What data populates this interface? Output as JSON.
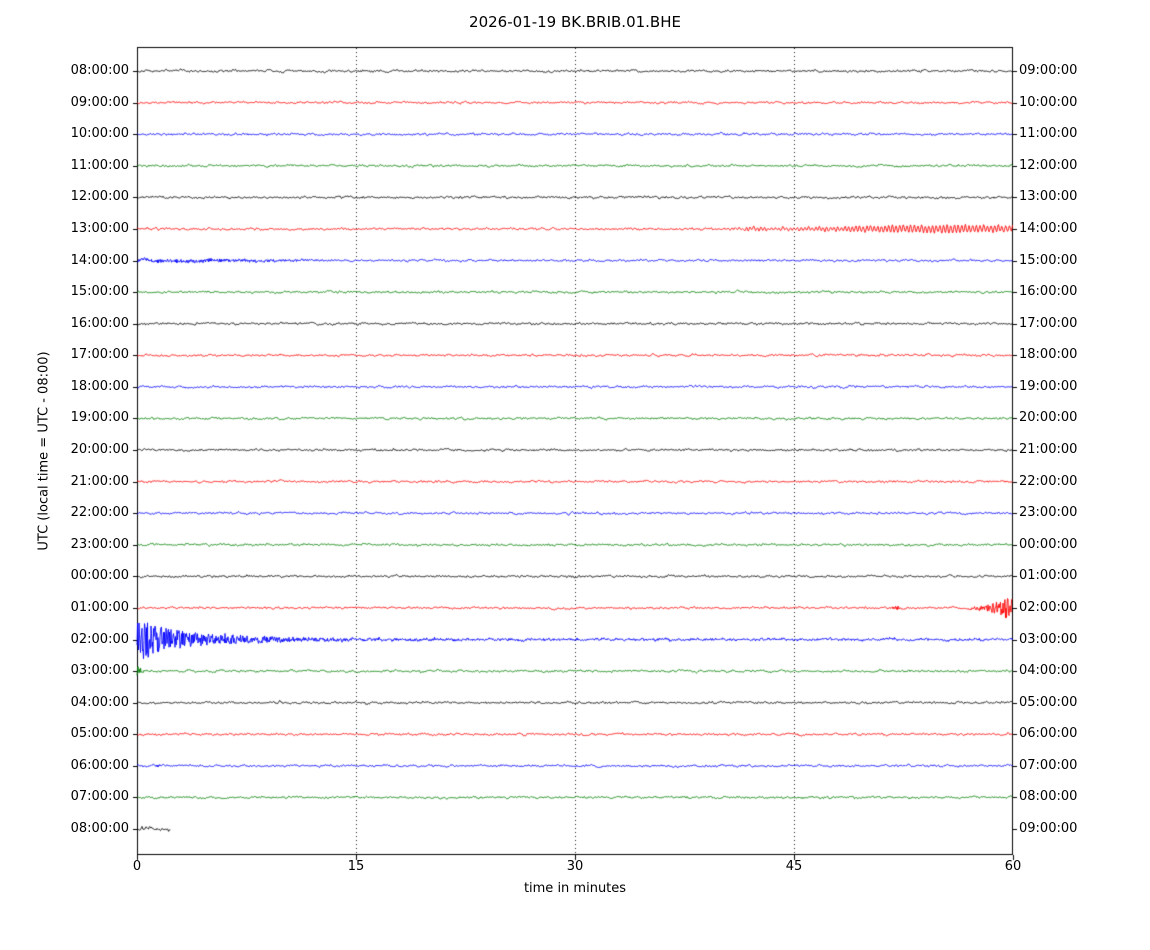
{
  "chart_data": {
    "type": "line",
    "kind": "helicorder-dayplot",
    "title": "2026-01-19 BK.BRIB.01.BHE",
    "xlabel": "time in minutes",
    "ylabel": "UTC (local time = UTC - 08:00)",
    "x_range": [
      0,
      60
    ],
    "x_ticks": [
      0,
      15,
      30,
      45,
      60
    ],
    "grid_minutes": [
      15,
      30,
      45
    ],
    "minutes_per_row": 60,
    "colors": {
      "black": "#000000",
      "red": "#ff0000",
      "blue": "#0000ff",
      "green": "#008000"
    },
    "rows": [
      {
        "left": "08:00:00",
        "right": "09:00:00",
        "color": "black",
        "seed": 3
      },
      {
        "left": "09:00:00",
        "right": "10:00:00",
        "color": "red",
        "seed": 7
      },
      {
        "left": "10:00:00",
        "right": "11:00:00",
        "color": "blue",
        "seed": 11
      },
      {
        "left": "11:00:00",
        "right": "12:00:00",
        "color": "green",
        "seed": 19
      },
      {
        "left": "12:00:00",
        "right": "13:00:00",
        "color": "black",
        "seed": 23
      },
      {
        "left": "13:00:00",
        "right": "14:00:00",
        "color": "red",
        "seed": 31,
        "events": [
          {
            "type": "osc",
            "freq": 4,
            "env": [
              [
                40,
                0.2
              ],
              [
                42,
                1.0
              ],
              [
                43.5,
                0.5
              ],
              [
                46,
                0.8
              ],
              [
                48,
                1.2
              ],
              [
                50,
                1.5
              ],
              [
                52,
                1.8
              ],
              [
                54,
                2.0
              ],
              [
                56,
                2.2
              ],
              [
                58,
                1.7
              ],
              [
                60,
                1.5
              ]
            ]
          }
        ]
      },
      {
        "left": "14:00:00",
        "right": "15:00:00",
        "color": "blue",
        "seed": 37,
        "events": [
          {
            "type": "noise",
            "env": [
              [
                0,
                1.1
              ],
              [
                4,
                0.9
              ],
              [
                8,
                0.7
              ],
              [
                12,
                0.35
              ],
              [
                14,
                0
              ]
            ]
          }
        ]
      },
      {
        "left": "15:00:00",
        "right": "16:00:00",
        "color": "green",
        "seed": 41
      },
      {
        "left": "16:00:00",
        "right": "17:00:00",
        "color": "black",
        "seed": 43
      },
      {
        "left": "17:00:00",
        "right": "18:00:00",
        "color": "red",
        "seed": 47
      },
      {
        "left": "18:00:00",
        "right": "19:00:00",
        "color": "blue",
        "seed": 53
      },
      {
        "left": "19:00:00",
        "right": "20:00:00",
        "color": "green",
        "seed": 59
      },
      {
        "left": "20:00:00",
        "right": "21:00:00",
        "color": "black",
        "seed": 61
      },
      {
        "left": "21:00:00",
        "right": "22:00:00",
        "color": "red",
        "seed": 67
      },
      {
        "left": "22:00:00",
        "right": "23:00:00",
        "color": "blue",
        "seed": 71
      },
      {
        "left": "23:00:00",
        "right": "00:00:00",
        "color": "green",
        "seed": 73
      },
      {
        "left": "00:00:00",
        "right": "01:00:00",
        "color": "black",
        "seed": 79
      },
      {
        "left": "01:00:00",
        "right": "02:00:00",
        "color": "red",
        "seed": 83,
        "events": [
          {
            "type": "noise",
            "env": [
              [
                51.5,
                0
              ],
              [
                52,
                1.2
              ],
              [
                52.4,
                0
              ]
            ]
          },
          {
            "type": "noise",
            "env": [
              [
                57,
                0.3
              ],
              [
                58,
                1.5
              ],
              [
                59,
                4
              ],
              [
                59.5,
                5.5
              ],
              [
                60,
                5
              ]
            ]
          }
        ]
      },
      {
        "left": "02:00:00",
        "right": "03:00:00",
        "color": "blue",
        "seed": 89,
        "events": [
          {
            "type": "noise",
            "env": [
              [
                0,
                9
              ],
              [
                0.2,
                12
              ],
              [
                0.5,
                11
              ],
              [
                1,
                9
              ],
              [
                1.5,
                7.5
              ],
              [
                2.5,
                5.5
              ],
              [
                3.5,
                4.5
              ],
              [
                5,
                3.2
              ],
              [
                7,
                2.2
              ],
              [
                9,
                1.6
              ],
              [
                11,
                1.2
              ],
              [
                14,
                0.8
              ],
              [
                20,
                0.5
              ],
              [
                60,
                0.3
              ]
            ]
          }
        ]
      },
      {
        "left": "03:00:00",
        "right": "04:00:00",
        "color": "green",
        "seed": 97,
        "events": [
          {
            "type": "noise",
            "env": [
              [
                0,
                3
              ],
              [
                0.3,
                1.2
              ],
              [
                0.7,
                0
              ]
            ]
          }
        ]
      },
      {
        "left": "04:00:00",
        "right": "05:00:00",
        "color": "black",
        "seed": 101
      },
      {
        "left": "05:00:00",
        "right": "06:00:00",
        "color": "red",
        "seed": 103
      },
      {
        "left": "06:00:00",
        "right": "07:00:00",
        "color": "blue",
        "seed": 107,
        "events": [
          {
            "type": "noise",
            "env": [
              [
                1.2,
                0
              ],
              [
                1.6,
                0.8
              ],
              [
                2.2,
                0
              ]
            ]
          }
        ]
      },
      {
        "left": "07:00:00",
        "right": "08:00:00",
        "color": "green",
        "seed": 109
      },
      {
        "left": "08:00:00",
        "right": "09:00:00",
        "color": "black",
        "seed": 113,
        "duration": 2.3,
        "base_amp": 1.8
      }
    ]
  }
}
